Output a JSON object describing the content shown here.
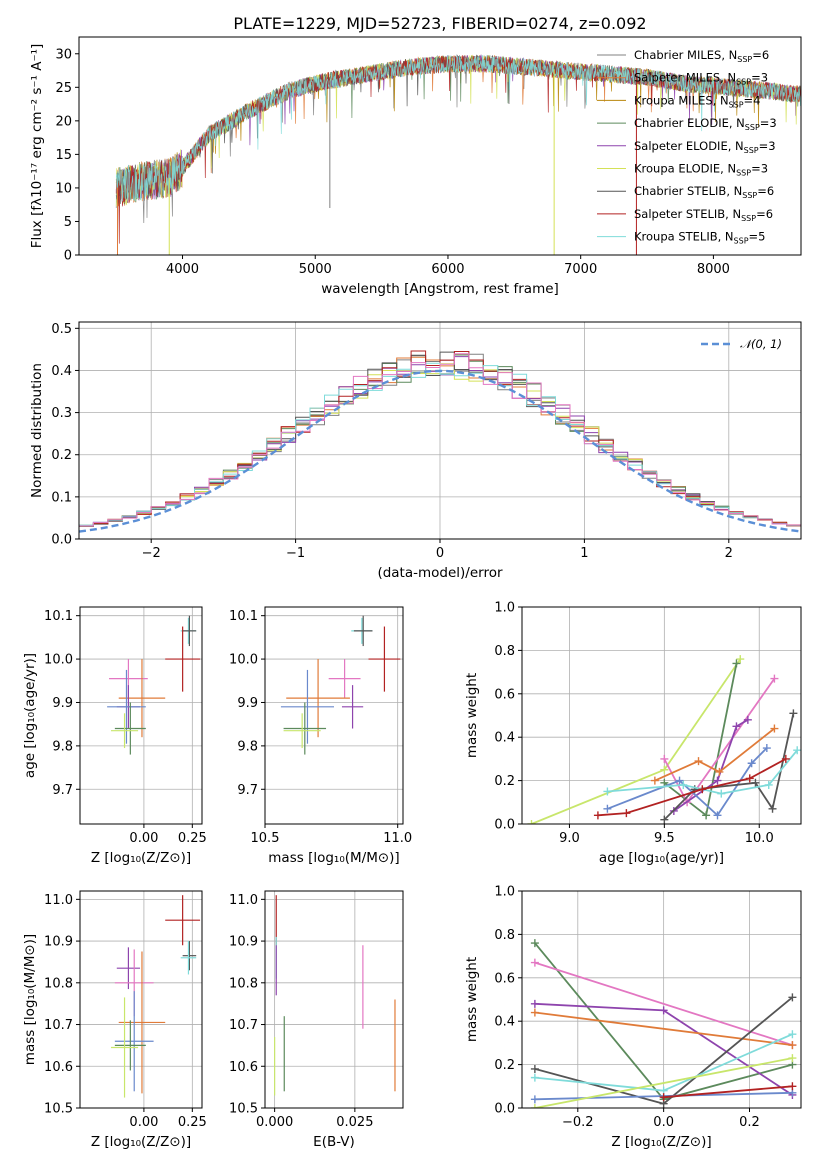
{
  "colors": [
    "#808080",
    "#e07b39",
    "#b8860b",
    "#5c8a5c",
    "#8e44ad",
    "#d4e157",
    "#555555",
    "#b22222",
    "#7fdbda",
    "#6a89cc",
    "#e377c2",
    "#c8e66b"
  ],
  "chart_data": [
    {
      "id": "spectrum",
      "type": "line",
      "title": "PLATE=1229, MJD=52723, FIBERID=0274, z=0.092",
      "xlabel": "wavelength [Angstrom, rest frame]",
      "ylabel": "Flux [fλ10⁻¹⁷ erg cm⁻² s⁻¹ A⁻¹]",
      "xlim": [
        3220,
        8660
      ],
      "ylim": [
        0,
        32.5
      ],
      "xticks": [
        4000,
        5000,
        6000,
        7000,
        8000
      ],
      "yticks": [
        0,
        5,
        10,
        15,
        20,
        25,
        30
      ],
      "legend_position": "top-right",
      "continuum": {
        "x": [
          3500,
          3700,
          3900,
          4000,
          4200,
          4500,
          4800,
          5100,
          5400,
          5700,
          6000,
          6300,
          6600,
          6900,
          7200,
          7500,
          7800,
          8100,
          8400,
          8600
        ],
        "y": [
          10,
          11,
          11.5,
          13,
          18,
          21.5,
          24.5,
          26,
          27,
          28,
          28.5,
          28.5,
          28,
          27.5,
          27,
          26.5,
          25.5,
          25,
          24.5,
          24
        ]
      },
      "series": [
        {
          "name": "Chabrier MILES, N",
          "sub": "SSP",
          "suffix": "=6"
        },
        {
          "name": "Salpeter MILES, N",
          "sub": "SSP",
          "suffix": "=3"
        },
        {
          "name": "Kroupa MILES, N",
          "sub": "SSP",
          "suffix": "=4"
        },
        {
          "name": "Chabrier ELODIE, N",
          "sub": "SSP",
          "suffix": "=3"
        },
        {
          "name": "Salpeter ELODIE, N",
          "sub": "SSP",
          "suffix": "=3"
        },
        {
          "name": "Kroupa ELODIE, N",
          "sub": "SSP",
          "suffix": "=3"
        },
        {
          "name": "Chabrier STELIB, N",
          "sub": "SSP",
          "suffix": "=6"
        },
        {
          "name": "Salpeter STELIB, N",
          "sub": "SSP",
          "suffix": "=6"
        },
        {
          "name": "Kroupa STELIB, N",
          "sub": "SSP",
          "suffix": "=5"
        }
      ]
    },
    {
      "id": "residuals",
      "type": "line",
      "xlabel": "(data-model)/error",
      "ylabel": "Normed distribution",
      "xlim": [
        -2.5,
        2.5
      ],
      "ylim": [
        0,
        0.515
      ],
      "xticks": [
        -2,
        -1,
        0,
        1,
        2
      ],
      "yticks": [
        0.0,
        0.1,
        0.2,
        0.3,
        0.4,
        0.5
      ],
      "reference_curve": {
        "name": "𝒩(0, 1)",
        "style": "dashed",
        "color": "#5b8fd6"
      }
    },
    {
      "id": "age_vs_Z",
      "type": "scatter",
      "xlabel": "Z [log₁₀(Z/Z⊙)]",
      "ylabel": "age  [log₁₀(age/yr)]",
      "xlim": [
        -0.33,
        0.3
      ],
      "ylim": [
        9.62,
        10.12
      ],
      "xticks": [
        0.0,
        0.25
      ],
      "yticks": [
        9.7,
        9.8,
        9.9,
        10.0,
        10.1
      ],
      "points": [
        {
          "x": 0.23,
          "y": 10.065,
          "xerr": 0.04,
          "yerr": 0.03,
          "c": 8
        },
        {
          "x": 0.235,
          "y": 10.065,
          "xerr": 0.035,
          "yerr": 0.035,
          "c": 6
        },
        {
          "x": 0.2,
          "y": 10.0,
          "xerr": 0.09,
          "yerr": 0.075,
          "c": 7
        },
        {
          "x": -0.08,
          "y": 9.955,
          "xerr": 0.1,
          "yerr": 0.045,
          "c": 10
        },
        {
          "x": -0.01,
          "y": 9.91,
          "xerr": 0.12,
          "yerr": 0.09,
          "c": 1
        },
        {
          "x": -0.08,
          "y": 9.89,
          "xerr": 0.06,
          "yerr": 0.05,
          "c": 4
        },
        {
          "x": -0.09,
          "y": 9.89,
          "xerr": 0.1,
          "yerr": 0.085,
          "c": 9
        },
        {
          "x": -0.07,
          "y": 9.84,
          "xerr": 0.08,
          "yerr": 0.06,
          "c": 3
        },
        {
          "x": -0.1,
          "y": 9.835,
          "xerr": 0.07,
          "yerr": 0.04,
          "c": 11
        }
      ]
    },
    {
      "id": "age_vs_mass",
      "type": "scatter",
      "xlabel": "mass [log₁₀(M/M⊙)]",
      "ylabel": "",
      "xlim": [
        10.5,
        11.02
      ],
      "ylim": [
        9.62,
        10.12
      ],
      "xticks": [
        10.5,
        11.0
      ],
      "yticks": [
        9.7,
        9.8,
        9.9,
        10.0,
        10.1
      ],
      "points": [
        {
          "x": 10.865,
          "y": 10.065,
          "xerr": 0.04,
          "yerr": 0.03,
          "c": 8
        },
        {
          "x": 10.87,
          "y": 10.065,
          "xerr": 0.035,
          "yerr": 0.035,
          "c": 6
        },
        {
          "x": 10.95,
          "y": 10.0,
          "xerr": 0.06,
          "yerr": 0.075,
          "c": 7
        },
        {
          "x": 10.8,
          "y": 9.955,
          "xerr": 0.06,
          "yerr": 0.045,
          "c": 10
        },
        {
          "x": 10.7,
          "y": 9.91,
          "xerr": 0.12,
          "yerr": 0.09,
          "c": 1
        },
        {
          "x": 10.83,
          "y": 9.89,
          "xerr": 0.04,
          "yerr": 0.05,
          "c": 4
        },
        {
          "x": 10.66,
          "y": 9.89,
          "xerr": 0.1,
          "yerr": 0.085,
          "c": 9
        },
        {
          "x": 10.65,
          "y": 9.84,
          "xerr": 0.08,
          "yerr": 0.06,
          "c": 3
        },
        {
          "x": 10.64,
          "y": 9.835,
          "xerr": 0.07,
          "yerr": 0.04,
          "c": 11
        }
      ]
    },
    {
      "id": "weight_vs_age",
      "type": "line",
      "xlabel": "age  [log₁₀(age/yr)]",
      "ylabel": "mass weight",
      "xlim": [
        8.75,
        10.22
      ],
      "ylim": [
        0,
        1.0
      ],
      "xticks": [
        9.0,
        9.5,
        10.0
      ],
      "yticks": [
        0.0,
        0.2,
        0.4,
        0.6,
        0.8,
        1.0
      ],
      "series": [
        {
          "c": 11,
          "x": [
            8.8,
            9.5,
            9.9
          ],
          "y": [
            0.0,
            0.25,
            0.76
          ]
        },
        {
          "c": 3,
          "x": [
            9.5,
            9.72,
            9.88
          ],
          "y": [
            0.19,
            0.04,
            0.74
          ]
        },
        {
          "c": 10,
          "x": [
            9.5,
            9.62,
            10.08
          ],
          "y": [
            0.3,
            0.1,
            0.67
          ]
        },
        {
          "c": 4,
          "x": [
            9.55,
            9.78,
            9.88,
            9.94
          ],
          "y": [
            0.06,
            0.2,
            0.45,
            0.48
          ]
        },
        {
          "c": 1,
          "x": [
            9.45,
            9.68,
            9.79,
            10.08
          ],
          "y": [
            0.2,
            0.29,
            0.24,
            0.44
          ]
        },
        {
          "c": 9,
          "x": [
            9.2,
            9.58,
            9.78,
            9.96,
            10.04
          ],
          "y": [
            0.07,
            0.2,
            0.04,
            0.28,
            0.35
          ]
        },
        {
          "c": 6,
          "x": [
            9.5,
            9.66,
            9.98,
            10.07,
            10.18
          ],
          "y": [
            0.02,
            0.16,
            0.19,
            0.07,
            0.51
          ]
        },
        {
          "c": 8,
          "x": [
            9.2,
            9.6,
            9.8,
            10.05,
            10.2
          ],
          "y": [
            0.15,
            0.18,
            0.14,
            0.18,
            0.34
          ]
        },
        {
          "c": 7,
          "x": [
            9.15,
            9.3,
            9.7,
            9.95,
            10.14
          ],
          "y": [
            0.04,
            0.05,
            0.16,
            0.21,
            0.3
          ]
        }
      ]
    },
    {
      "id": "mass_vs_Z",
      "type": "scatter",
      "xlabel": "Z [log₁₀(Z/Z⊙)]",
      "ylabel": "mass [log₁₀(M/M⊙)]",
      "xlim": [
        -0.33,
        0.3
      ],
      "ylim": [
        10.5,
        11.02
      ],
      "xticks": [
        0.0,
        0.25
      ],
      "yticks": [
        10.5,
        10.6,
        10.7,
        10.8,
        10.9,
        11.0
      ],
      "points": [
        {
          "x": 0.2,
          "y": 10.95,
          "xerr": 0.09,
          "yerr": 0.06,
          "c": 7
        },
        {
          "x": 0.235,
          "y": 10.865,
          "xerr": 0.035,
          "yerr": 0.035,
          "c": 6
        },
        {
          "x": 0.23,
          "y": 10.86,
          "xerr": 0.04,
          "yerr": 0.04,
          "c": 8
        },
        {
          "x": -0.08,
          "y": 10.835,
          "xerr": 0.06,
          "yerr": 0.05,
          "c": 4
        },
        {
          "x": -0.05,
          "y": 10.8,
          "xerr": 0.1,
          "yerr": 0.08,
          "c": 10
        },
        {
          "x": -0.01,
          "y": 10.705,
          "xerr": 0.12,
          "yerr": 0.17,
          "c": 1
        },
        {
          "x": -0.05,
          "y": 10.66,
          "xerr": 0.1,
          "yerr": 0.12,
          "c": 9
        },
        {
          "x": -0.07,
          "y": 10.65,
          "xerr": 0.08,
          "yerr": 0.06,
          "c": 3
        },
        {
          "x": -0.1,
          "y": 10.645,
          "xerr": 0.07,
          "yerr": 0.12,
          "c": 11
        }
      ]
    },
    {
      "id": "mass_vs_EBV",
      "type": "scatter",
      "xlabel": "E(B-V)",
      "ylabel": "",
      "xlim": [
        -0.003,
        0.04
      ],
      "ylim": [
        10.5,
        11.02
      ],
      "xticks": [
        0.0,
        0.025
      ],
      "yticks": [
        10.5,
        10.6,
        10.7,
        10.8,
        10.9,
        11.0
      ],
      "points": [
        {
          "x": 0.0005,
          "y": 10.95,
          "xerr": 0,
          "yerr": 0.06,
          "c": 7
        },
        {
          "x": 0.0005,
          "y": 10.86,
          "xerr": 0,
          "yerr": 0.05,
          "c": 8
        },
        {
          "x": 0.0005,
          "y": 10.83,
          "xerr": 0,
          "yerr": 0.06,
          "c": 4
        },
        {
          "x": 0.0,
          "y": 10.6,
          "xerr": 0,
          "yerr": 0.07,
          "c": 11
        },
        {
          "x": 0.003,
          "y": 10.63,
          "xerr": 0,
          "yerr": 0.09,
          "c": 3
        },
        {
          "x": 0.0275,
          "y": 10.79,
          "xerr": 0,
          "yerr": 0.1,
          "c": 10
        },
        {
          "x": 0.0375,
          "y": 10.65,
          "xerr": 0,
          "yerr": 0.11,
          "c": 1
        }
      ]
    },
    {
      "id": "weight_vs_Z",
      "type": "line",
      "xlabel": "Z [log₁₀(Z/Z⊙)]",
      "ylabel": "mass weight",
      "xlim": [
        -0.33,
        0.32
      ],
      "ylim": [
        0,
        1.0
      ],
      "xticks": [
        -0.2,
        0.0,
        0.2
      ],
      "yticks": [
        0.0,
        0.2,
        0.4,
        0.6,
        0.8,
        1.0
      ],
      "series": [
        {
          "c": 3,
          "x": [
            -0.3,
            0.0,
            0.3
          ],
          "y": [
            0.76,
            0.04,
            0.2
          ]
        },
        {
          "c": 10,
          "x": [
            -0.3,
            0.3
          ],
          "y": [
            0.67,
            0.29
          ]
        },
        {
          "c": 4,
          "x": [
            -0.3,
            0.0,
            0.3
          ],
          "y": [
            0.48,
            0.45,
            0.06
          ]
        },
        {
          "c": 1,
          "x": [
            -0.3,
            0.3
          ],
          "y": [
            0.44,
            0.29
          ]
        },
        {
          "c": 6,
          "x": [
            -0.3,
            0.0,
            0.3
          ],
          "y": [
            0.18,
            0.02,
            0.51
          ]
        },
        {
          "c": 8,
          "x": [
            -0.3,
            0.0,
            0.3
          ],
          "y": [
            0.14,
            0.08,
            0.34
          ]
        },
        {
          "c": 9,
          "x": [
            -0.3,
            0.3
          ],
          "y": [
            0.04,
            0.07
          ]
        },
        {
          "c": 11,
          "x": [
            -0.3,
            0.3
          ],
          "y": [
            0.0,
            0.23
          ]
        },
        {
          "c": 7,
          "x": [
            0.0,
            0.3
          ],
          "y": [
            0.05,
            0.1
          ]
        }
      ]
    }
  ]
}
